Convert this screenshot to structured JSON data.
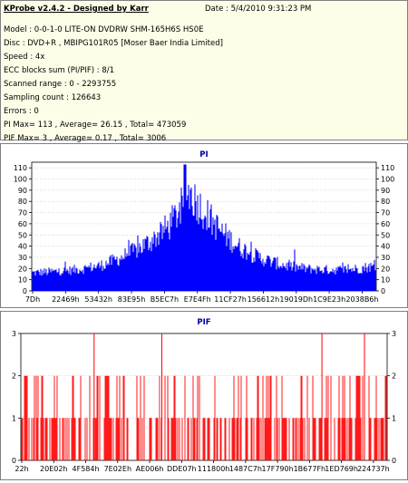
{
  "header": {
    "title": "KProbe v2.4.2 - Designed by Karr",
    "date": "Date : 5/4/2010 9:31:23 PM",
    "lines": [
      "Model : 0-0-1-0 LITE-ON DVDRW SHM-165H6S HS0E",
      "Disc : DVD+R , MBIPG101R05 [Moser Baer India Limited]",
      "Speed : 4x",
      "ECC blocks sum (PI/PIF) : 8/1",
      "Scanned range : 0 - 2293755",
      "Sampling count : 126643",
      "Errors : 0",
      "PI Max= 113 , Average= 26.15 , Total= 473059",
      "PIF Max= 3 , Average= 0.17 , Total= 3006"
    ]
  },
  "colors": {
    "pi": "#0000ff",
    "pif": "#ff0000",
    "title": "#0000a0",
    "grid": "#b0b0b0"
  },
  "chart_data": [
    {
      "type": "bar",
      "title": "PI",
      "ylim": [
        0,
        115
      ],
      "y_ticks": [
        0,
        10,
        20,
        30,
        40,
        50,
        60,
        70,
        80,
        90,
        100,
        110
      ],
      "x_tick_labels": [
        "7Dh",
        "22469h",
        "53432h",
        "83E95h",
        "B5EC7h",
        "E7E4Fh",
        "11CF27h",
        "156612h",
        "19019Dh",
        "1C9E23h",
        "2038B6h"
      ],
      "envelope": {
        "x": [
          0,
          0.05,
          0.1,
          0.15,
          0.2,
          0.25,
          0.3,
          0.35,
          0.4,
          0.42,
          0.44,
          0.45,
          0.46,
          0.48,
          0.5,
          0.55,
          0.6,
          0.65,
          0.7,
          0.75,
          0.8,
          0.85,
          0.9,
          0.95,
          0.98,
          1.0
        ],
        "y": [
          17,
          18,
          19,
          21,
          24,
          30,
          38,
          48,
          62,
          72,
          82,
          95,
          92,
          84,
          75,
          56,
          42,
          33,
          27,
          23,
          21,
          20,
          20,
          21,
          23,
          22
        ]
      },
      "max": 113
    },
    {
      "type": "bar",
      "title": "PIF",
      "ylim": [
        0,
        3
      ],
      "y_ticks": [
        0,
        1,
        2,
        3
      ],
      "x_tick_labels": [
        "22h",
        "20E02h",
        "4F584h",
        "7E02Eh",
        "AE006h",
        "DDE07h",
        "111800h",
        "1487C7h",
        "17F790h",
        "1B677Fh",
        "1ED769h",
        "224737h"
      ],
      "spikes_at_3": [
        0.2,
        0.385,
        0.822,
        0.938
      ],
      "max": 3
    }
  ]
}
